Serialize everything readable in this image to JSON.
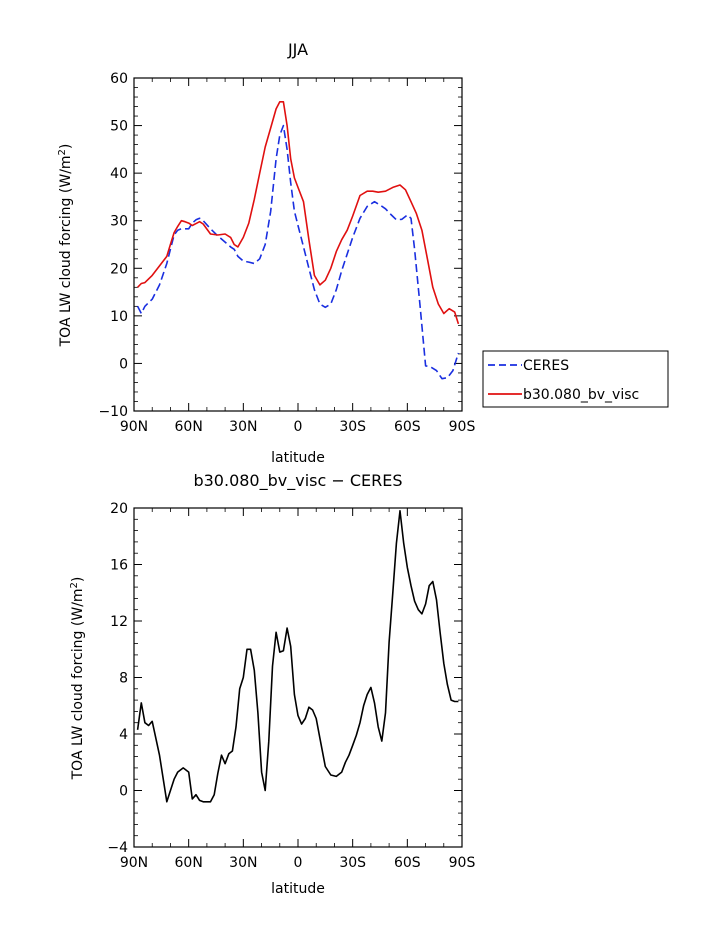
{
  "chart_data": [
    {
      "type": "line",
      "title": "JJA",
      "xlabel": "latitude",
      "ylabel": "TOA LW cloud forcing (W/m²)",
      "ylabel_parts": [
        "TOA LW cloud forcing (W/m",
        "2",
        ")"
      ],
      "xlim": [
        90,
        -90
      ],
      "ylim": [
        -10,
        60
      ],
      "x_ticks": [
        90,
        60,
        30,
        0,
        -30,
        -60,
        -90
      ],
      "x_tick_labels": [
        "90N",
        "60N",
        "30N",
        "0",
        "30S",
        "60S",
        "90S"
      ],
      "y_ticks": [
        -10,
        0,
        10,
        20,
        30,
        40,
        50,
        60
      ],
      "y_tick_labels": [
        "−10",
        "0",
        "10",
        "20",
        "30",
        "40",
        "50",
        "60"
      ],
      "legend_placement": "right-bottom outside",
      "series": [
        {
          "name": "CERES",
          "color": "#1a2fe0",
          "dash": "dashed",
          "x": [
            88,
            86,
            84,
            80,
            76,
            72,
            70,
            68,
            66,
            64,
            60,
            58,
            56,
            54,
            52,
            48,
            44,
            40,
            37,
            35,
            33,
            30,
            27,
            24,
            21,
            18,
            15,
            12,
            10,
            8,
            6,
            4,
            2,
            0,
            -3,
            -6,
            -9,
            -12,
            -15,
            -18,
            -21,
            -24,
            -27,
            -30,
            -34,
            -38,
            -42,
            -45,
            -48,
            -51,
            -54,
            -57,
            -60,
            -62,
            -64,
            -67,
            -70,
            -73,
            -76,
            -79,
            -82,
            -85,
            -88
          ],
          "y": [
            12,
            10.5,
            12,
            13.5,
            16.5,
            21,
            24,
            27,
            28,
            28.3,
            28.3,
            29.5,
            30.2,
            30.5,
            30,
            28.3,
            26.8,
            25.5,
            24.5,
            24,
            22.5,
            21.5,
            21.3,
            21,
            22,
            25,
            32,
            43,
            48,
            50,
            45,
            38,
            32,
            29,
            24.5,
            20,
            15.5,
            12.5,
            11.8,
            12.5,
            15.5,
            19.5,
            23,
            26.5,
            30.5,
            33,
            34,
            33.3,
            32.5,
            31.3,
            30.2,
            30.3,
            31.2,
            30.5,
            24,
            12,
            -0.5,
            -0.8,
            -1.5,
            -3.2,
            -3,
            -1.5,
            2.2
          ]
        },
        {
          "name": "b30.080_bv_visc",
          "color": "#e01010",
          "dash": "solid",
          "x": [
            88,
            86,
            84,
            80,
            76,
            72,
            70,
            68,
            66,
            64,
            62,
            60,
            58,
            56,
            54,
            52,
            48,
            44,
            40,
            37,
            35,
            33,
            30,
            27,
            24,
            21,
            18,
            15,
            12,
            10,
            8,
            6,
            4,
            2,
            0,
            -3,
            -6,
            -9,
            -12,
            -15,
            -18,
            -21,
            -24,
            -27,
            -30,
            -34,
            -38,
            -41,
            -44,
            -48,
            -52,
            -56,
            -59,
            -62,
            -65,
            -68,
            -71,
            -74,
            -77,
            -80,
            -83,
            -86,
            -88
          ],
          "y": [
            16,
            16.8,
            17,
            18.5,
            20.5,
            22.5,
            25,
            27.5,
            28.8,
            30,
            29.8,
            29.5,
            29,
            29.4,
            29.8,
            29.3,
            27.2,
            27,
            27.2,
            26.5,
            25,
            24.5,
            26.5,
            29.5,
            34.5,
            40,
            45.5,
            49.5,
            53.5,
            55,
            55,
            50,
            43,
            39,
            37,
            34,
            26,
            18.5,
            16.5,
            17.5,
            20,
            23.5,
            26,
            28,
            31,
            35.3,
            36.2,
            36.2,
            36,
            36.2,
            37,
            37.5,
            36.5,
            34,
            31.5,
            28,
            22,
            16,
            12.5,
            10.5,
            11.5,
            10.8,
            8.3
          ]
        }
      ]
    },
    {
      "type": "line",
      "title": "b30.080_bv_visc − CERES",
      "xlabel": "latitude",
      "ylabel": "TOA LW cloud forcing (W/m²)",
      "ylabel_parts": [
        "TOA LW cloud forcing (W/m",
        "2",
        ")"
      ],
      "xlim": [
        90,
        -90
      ],
      "ylim": [
        -4,
        20
      ],
      "x_ticks": [
        90,
        60,
        30,
        0,
        -30,
        -60,
        -90
      ],
      "x_tick_labels": [
        "90N",
        "60N",
        "30N",
        "0",
        "30S",
        "60S",
        "90S"
      ],
      "y_ticks": [
        -4,
        0,
        4,
        8,
        12,
        16,
        20
      ],
      "y_tick_labels": [
        "−4",
        "0",
        "4",
        "8",
        "12",
        "16",
        "20"
      ],
      "series": [
        {
          "name": "",
          "color": "#000000",
          "dash": "solid",
          "x": [
            88,
            86,
            84,
            82,
            80,
            76,
            72,
            68,
            66,
            63,
            60,
            58,
            56,
            54,
            52,
            50,
            48,
            46,
            44,
            42,
            40,
            38,
            36,
            34,
            32,
            30,
            28,
            26,
            24,
            22,
            20,
            18,
            16,
            14,
            12,
            10,
            8,
            6,
            4,
            2,
            0,
            -2,
            -4,
            -6,
            -8,
            -10,
            -12,
            -15,
            -18,
            -21,
            -24,
            -26,
            -28,
            -30,
            -32,
            -34,
            -36,
            -38,
            -40,
            -42,
            -44,
            -46,
            -48,
            -50,
            -52,
            -54,
            -56,
            -58,
            -60,
            -62,
            -64,
            -66,
            -68,
            -70,
            -72,
            -74,
            -76,
            -78,
            -80,
            -82,
            -84,
            -86,
            -88
          ],
          "y": [
            4.3,
            6.2,
            4.8,
            4.6,
            4.9,
            2.5,
            -0.8,
            0.8,
            1.3,
            1.6,
            1.3,
            -0.6,
            -0.3,
            -0.7,
            -0.8,
            -0.8,
            -0.8,
            -0.3,
            1.2,
            2.5,
            1.9,
            2.6,
            2.8,
            4.5,
            7.2,
            8,
            10,
            10,
            8.5,
            5.5,
            1.3,
            0,
            3.5,
            8.8,
            11.2,
            9.8,
            9.9,
            11.5,
            10.2,
            6.8,
            5.3,
            4.7,
            5.1,
            5.9,
            5.7,
            5.1,
            3.7,
            1.7,
            1.1,
            1,
            1.3,
            2,
            2.5,
            3.2,
            3.9,
            4.8,
            6,
            6.8,
            7.3,
            6.2,
            4.5,
            3.5,
            5.5,
            10.5,
            14,
            17.5,
            19.8,
            17.5,
            15.8,
            14.5,
            13.4,
            12.8,
            12.5,
            13.2,
            14.5,
            14.8,
            13.5,
            11.2,
            9,
            7.5,
            6.4,
            6.3,
            6.3
          ]
        }
      ]
    }
  ]
}
